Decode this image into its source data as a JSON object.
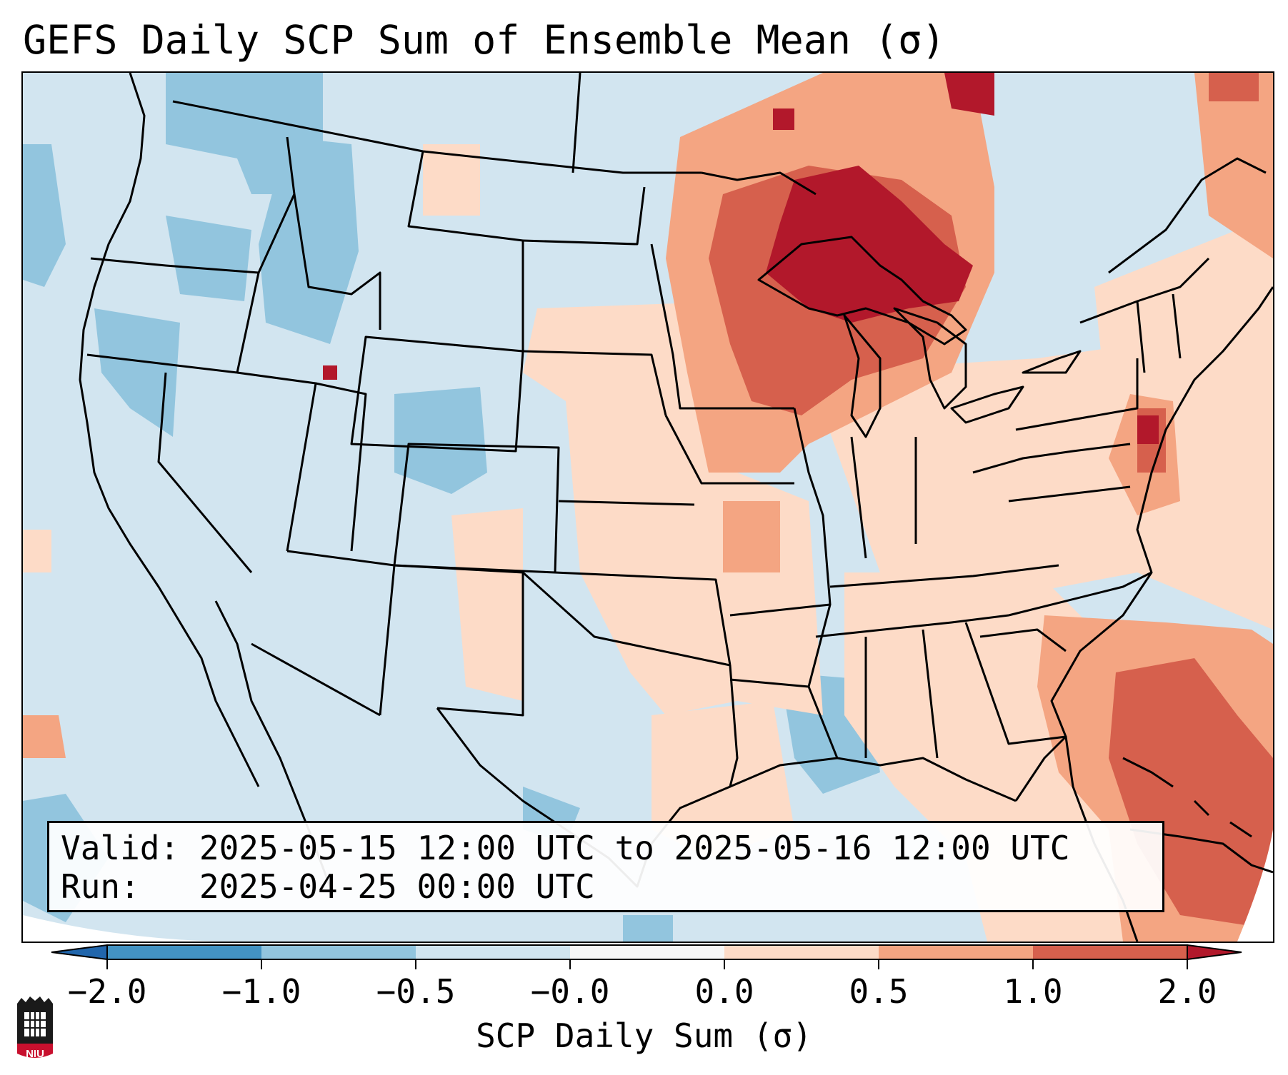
{
  "title": "GEFS Daily SCP Sum of Ensemble Mean (σ)",
  "info": {
    "valid_label": "Valid:",
    "valid_value": "2025-05-15 12:00 UTC to 2025-05-16 12:00 UTC",
    "run_label": "Run:",
    "run_value": "2025-04-25 00:00 UTC"
  },
  "colorbar": {
    "label": "SCP Daily Sum (σ)",
    "ticks": [
      "−2.0",
      "−1.0",
      "−0.5",
      "−0.0",
      "0.0",
      "0.5",
      "1.0",
      "2.0"
    ],
    "colors": [
      "#4393c3",
      "#92c5de",
      "#d1e5f0",
      "#f7f7f7",
      "#fddbc7",
      "#f4a582",
      "#d6604d",
      "#b2182b"
    ]
  },
  "legend_colors": {
    "very_negative": "#4393c3",
    "negative": "#92c5de",
    "slightly_negative": "#d1e5f0",
    "slightly_positive": "#fddbc7",
    "positive": "#f4a582",
    "high": "#d6604d",
    "very_high": "#b2182b"
  },
  "logo": {
    "text": "NIU"
  }
}
